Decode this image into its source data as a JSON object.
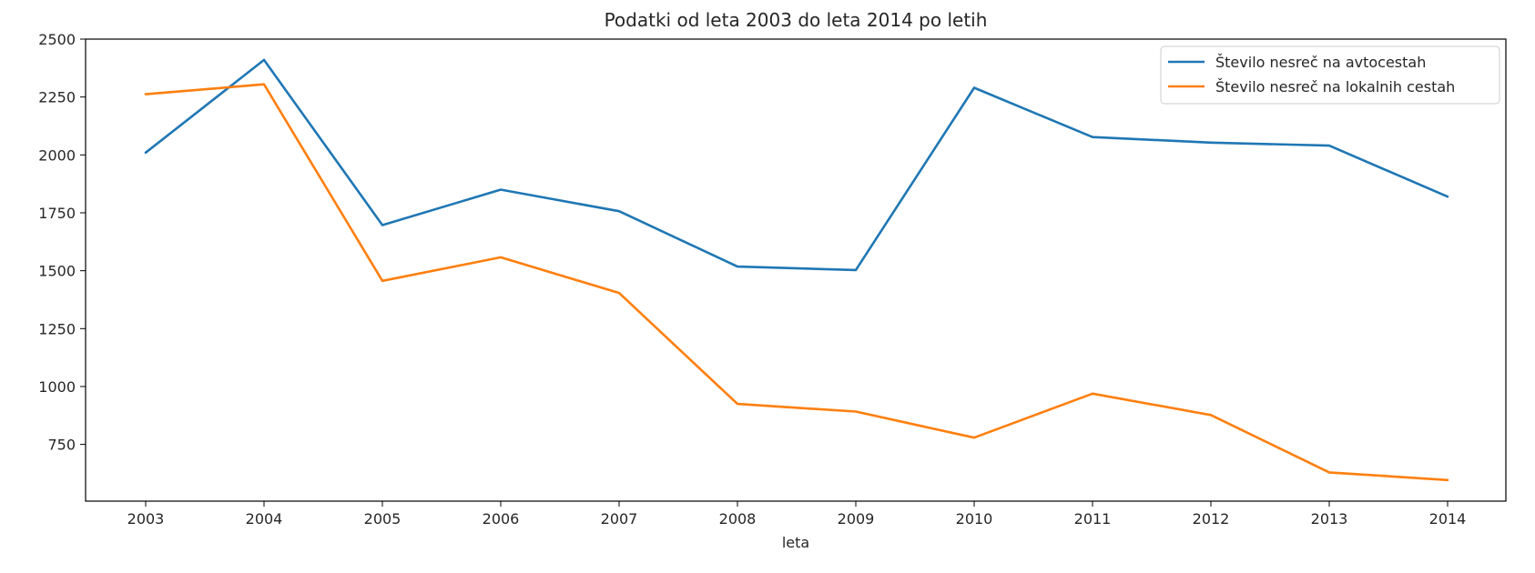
{
  "chart_data": {
    "type": "line",
    "title": "Podatki od leta 2003 do leta 2014 po letih",
    "xlabel": "leta",
    "ylabel": "",
    "x": [
      "2003",
      "2004",
      "2005",
      "2006",
      "2007",
      "2008",
      "2009",
      "2010",
      "2011",
      "2012",
      "2013",
      "2014"
    ],
    "yticks": [
      750,
      1000,
      1250,
      1500,
      1750,
      2000,
      2250,
      2500
    ],
    "ylim": [
      505,
      2500
    ],
    "grid": false,
    "legend_position": "top-right",
    "series": [
      {
        "name": "Število nesreč na avtocestah",
        "color": "#1f77b4",
        "values": [
          2010,
          2410,
          1697,
          1850,
          1757,
          1518,
          1503,
          2290,
          2077,
          2053,
          2040,
          1820
        ]
      },
      {
        "name": "Število nesreč na lokalnih cestah",
        "color": "#ff7f0e",
        "values": [
          2262,
          2305,
          1456,
          1558,
          1404,
          925,
          892,
          779,
          969,
          877,
          629,
          596
        ]
      }
    ]
  }
}
